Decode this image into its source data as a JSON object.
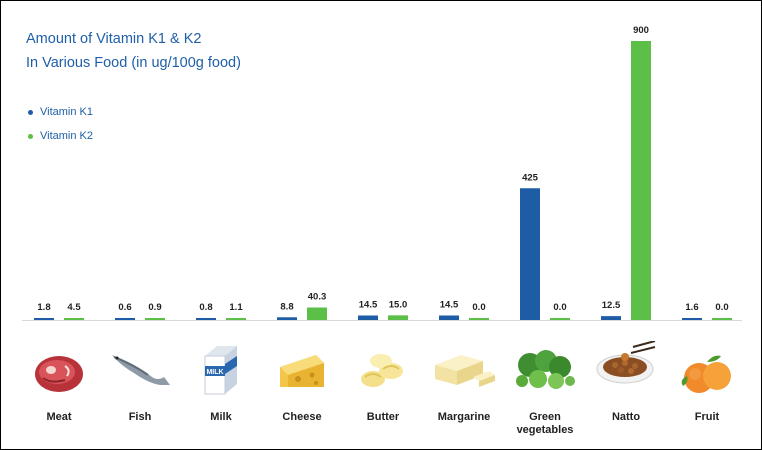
{
  "chart_data": {
    "type": "bar",
    "title": "Amount of Vitamin K1 & K2",
    "subtitle": "In Various Food (in ug/100g food)",
    "categories": [
      "Meat",
      "Fish",
      "Milk",
      "Cheese",
      "Butter",
      "Margarine",
      "Green vegetables",
      "Natto",
      "Fruit"
    ],
    "category_labels": [
      [
        "Meat"
      ],
      [
        "Fish"
      ],
      [
        "Milk"
      ],
      [
        "Cheese"
      ],
      [
        "Butter"
      ],
      [
        "Margarine"
      ],
      [
        "Green",
        "vegetables"
      ],
      [
        "Natto"
      ],
      [
        "Fruit"
      ]
    ],
    "series": [
      {
        "name": "Vitamin K1",
        "color": "#1f5ca6",
        "values": [
          1.8,
          0.6,
          0.8,
          8.8,
          14.5,
          14.5,
          425,
          12.5,
          1.6
        ],
        "labels": [
          "1.8",
          "0.6",
          "0.8",
          "8.8",
          "14.5",
          "14.5",
          "425",
          "12.5",
          "1.6"
        ]
      },
      {
        "name": "Vitamin K2",
        "color": "#5cbf47",
        "values": [
          4.5,
          0.9,
          1.1,
          40.3,
          15.0,
          0.0,
          0.0,
          900,
          0.0
        ],
        "labels": [
          "4.5",
          "0.9",
          "1.1",
          "40.3",
          "15.0",
          "0.0",
          "0.0",
          "900",
          "0.0"
        ]
      }
    ],
    "ylim": [
      0,
      900
    ],
    "legend": "top-left",
    "grid": false
  },
  "icons": [
    "steak-icon",
    "fish-icon",
    "milk-carton-icon",
    "cheese-icon",
    "butter-icon",
    "margarine-icon",
    "vegetables-icon",
    "natto-icon",
    "fruit-icon"
  ],
  "milk_icon_text": "MILK"
}
